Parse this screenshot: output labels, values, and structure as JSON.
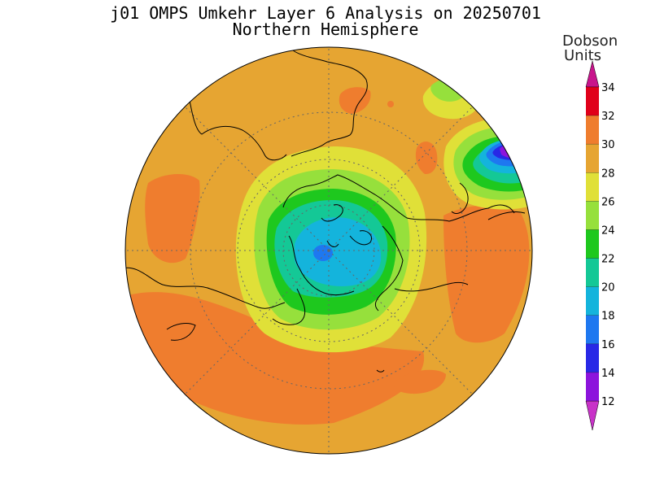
{
  "title": "j01 OMPS Umkehr Layer 6 Analysis on 20250701",
  "subtitle": "Northern Hemisphere",
  "colorbar": {
    "title_line1": "Dobson",
    "title_line2": "Units",
    "ticks": [
      "34",
      "32",
      "30",
      "28",
      "26",
      "24",
      "22",
      "20",
      "18",
      "16",
      "14",
      "12"
    ],
    "bands": [
      {
        "from": 32,
        "to": 34,
        "color": "#e0001a"
      },
      {
        "from": 30,
        "to": 32,
        "color": "#ef7d2e"
      },
      {
        "from": 28,
        "to": 30,
        "color": "#e6a532"
      },
      {
        "from": 26,
        "to": 28,
        "color": "#e0e038"
      },
      {
        "from": 24,
        "to": 26,
        "color": "#96e03c"
      },
      {
        "from": 22,
        "to": 24,
        "color": "#1ec81e"
      },
      {
        "from": 20,
        "to": 22,
        "color": "#14c896"
      },
      {
        "from": 18,
        "to": 20,
        "color": "#14b4dc"
      },
      {
        "from": 16,
        "to": 18,
        "color": "#1e78f0"
      },
      {
        "from": 14,
        "to": 16,
        "color": "#2828e6"
      },
      {
        "from": 12,
        "to": 14,
        "color": "#8c14dc"
      }
    ],
    "top_arrow_color": "#c8148c",
    "bottom_arrow_color": "#c832c8"
  },
  "map": {
    "projection": "north polar stereographic",
    "background_color": "#e6a532"
  }
}
